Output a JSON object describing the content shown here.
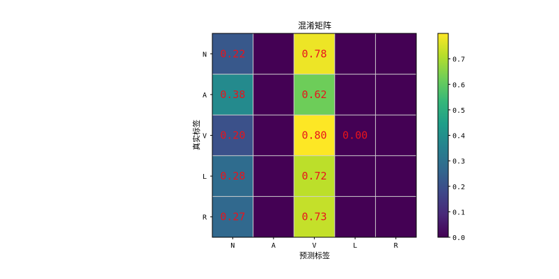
{
  "chart_data": {
    "type": "heatmap",
    "title": "混淆矩阵",
    "xlabel": "预测标签",
    "ylabel": "真实标签",
    "x_categories": [
      "N",
      "A",
      "V",
      "L",
      "R"
    ],
    "y_categories": [
      "N",
      "A",
      "V",
      "L",
      "R"
    ],
    "values": [
      [
        0.22,
        0,
        0.78,
        0,
        0
      ],
      [
        0.38,
        0,
        0.62,
        0,
        0
      ],
      [
        0.2,
        0,
        0.8,
        0.0,
        0
      ],
      [
        0.28,
        0,
        0.72,
        0,
        0
      ],
      [
        0.27,
        0,
        0.73,
        0,
        0
      ]
    ],
    "annotations": [
      [
        "0.22",
        null,
        "0.78",
        null,
        null
      ],
      [
        "0.38",
        null,
        "0.62",
        null,
        null
      ],
      [
        "0.20",
        null,
        "0.80",
        "0.00",
        null
      ],
      [
        "0.28",
        null,
        "0.72",
        null,
        null
      ],
      [
        "0.27",
        null,
        "0.73",
        null,
        null
      ]
    ],
    "colormap": "viridis",
    "vmin": 0,
    "vmax": 0.8,
    "colorbar_ticks": [
      "0.0",
      "0.1",
      "0.2",
      "0.3",
      "0.4",
      "0.5",
      "0.6",
      "0.7"
    ],
    "annotation_color": "#e8141c",
    "grid": true,
    "grid_color": "#d0d0d0"
  }
}
